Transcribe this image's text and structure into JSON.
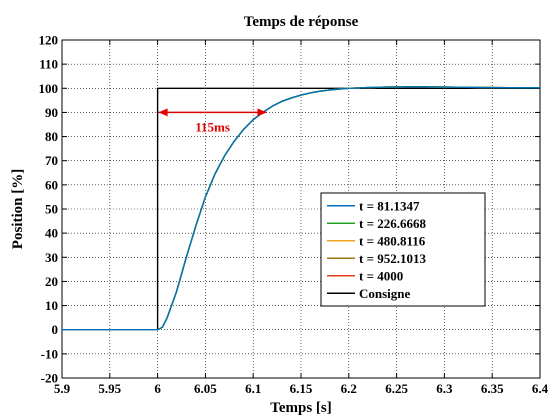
{
  "chart_data": {
    "type": "line",
    "title": "Temps de réponse",
    "xlabel": "Temps [s]",
    "ylabel": "Position [%]",
    "xlim": [
      5.9,
      6.4
    ],
    "ylim": [
      -20,
      120
    ],
    "xticks": [
      5.9,
      5.95,
      6,
      6.05,
      6.1,
      6.15,
      6.2,
      6.25,
      6.3,
      6.35,
      6.4
    ],
    "xtick_labels": [
      "5.9",
      "5.95",
      "6",
      "6.05",
      "6.1",
      "6.15",
      "6.2",
      "6.25",
      "6.3",
      "6.35",
      "6.4"
    ],
    "yticks": [
      -20,
      -10,
      0,
      10,
      20,
      30,
      40,
      50,
      60,
      70,
      80,
      90,
      100,
      110,
      120
    ],
    "ytick_labels": [
      "-20",
      "-10",
      "0",
      "10",
      "20",
      "30",
      "40",
      "50",
      "60",
      "70",
      "80",
      "90",
      "100",
      "110",
      "120"
    ],
    "grid": true,
    "legend_position": "lower-right",
    "series": [
      {
        "name": "t = 81.1347",
        "color": "#0072bd",
        "x": [
          5.9,
          6.0,
          6.005,
          6.01,
          6.02,
          6.03,
          6.04,
          6.05,
          6.06,
          6.07,
          6.08,
          6.09,
          6.1,
          6.11,
          6.12,
          6.13,
          6.14,
          6.15,
          6.16,
          6.17,
          6.18,
          6.19,
          6.2,
          6.22,
          6.24,
          6.26,
          6.28,
          6.3,
          6.35,
          6.4
        ],
        "y": [
          0,
          0,
          1,
          5,
          16,
          30,
          43,
          55,
          64.5,
          72,
          78,
          83,
          87,
          90,
          92.6,
          94.6,
          96,
          97.2,
          98.1,
          98.8,
          99.3,
          99.7,
          100,
          100.3,
          100.5,
          100.6,
          100.6,
          100.5,
          100.3,
          100.2
        ]
      },
      {
        "name": "t = 226.6668",
        "color": "#20a020",
        "x": [
          5.9,
          6.0,
          6.005,
          6.01,
          6.02,
          6.03,
          6.04,
          6.05,
          6.06,
          6.07,
          6.08,
          6.09,
          6.1,
          6.11,
          6.12,
          6.13,
          6.14,
          6.15,
          6.16,
          6.17,
          6.18,
          6.19,
          6.2,
          6.22,
          6.24,
          6.26,
          6.28,
          6.3,
          6.35,
          6.4
        ],
        "y": [
          0,
          0,
          1,
          5,
          16,
          30,
          43,
          55,
          64.5,
          72,
          78,
          83,
          87,
          90,
          92.6,
          94.6,
          96,
          97.2,
          98.1,
          98.8,
          99.3,
          99.7,
          100,
          100.3,
          100.5,
          100.6,
          100.6,
          100.5,
          100.3,
          100.2
        ]
      },
      {
        "name": "t = 480.8116",
        "color": "#f0a020",
        "x": [
          5.9,
          6.0,
          6.005,
          6.01,
          6.02,
          6.03,
          6.04,
          6.05,
          6.06,
          6.07,
          6.08,
          6.09,
          6.1,
          6.11,
          6.12,
          6.13,
          6.14,
          6.15,
          6.16,
          6.17,
          6.18,
          6.19,
          6.2,
          6.22,
          6.24,
          6.26,
          6.28,
          6.3,
          6.35,
          6.4
        ],
        "y": [
          0,
          0,
          1,
          5,
          16,
          30,
          43,
          55,
          64.5,
          72,
          78,
          83,
          87,
          90,
          92.6,
          94.6,
          96,
          97.2,
          98.1,
          98.8,
          99.3,
          99.7,
          100,
          100.3,
          100.5,
          100.6,
          100.6,
          100.5,
          100.3,
          100.2
        ]
      },
      {
        "name": "t = 952.1013",
        "color": "#a07a10",
        "x": [
          5.9,
          6.0,
          6.005,
          6.01,
          6.02,
          6.03,
          6.04,
          6.05,
          6.06,
          6.07,
          6.08,
          6.09,
          6.1,
          6.11,
          6.12,
          6.13,
          6.14,
          6.15,
          6.16,
          6.17,
          6.18,
          6.19,
          6.2,
          6.22,
          6.24,
          6.26,
          6.28,
          6.3,
          6.35,
          6.4
        ],
        "y": [
          0,
          0,
          1,
          5,
          16,
          30,
          43,
          55,
          64.5,
          72,
          78,
          83,
          87,
          90,
          92.6,
          94.6,
          96,
          97.2,
          98.1,
          98.8,
          99.3,
          99.7,
          100,
          100.3,
          100.5,
          100.6,
          100.6,
          100.5,
          100.3,
          100.2
        ]
      },
      {
        "name": "t = 4000",
        "color": "#e8401c",
        "x": [
          5.9,
          6.0,
          6.005,
          6.01,
          6.02,
          6.03,
          6.04,
          6.05,
          6.06,
          6.07,
          6.08,
          6.09,
          6.1,
          6.11,
          6.12,
          6.13,
          6.14,
          6.15,
          6.16,
          6.17,
          6.18,
          6.19,
          6.2,
          6.22,
          6.24,
          6.26,
          6.28,
          6.3,
          6.35,
          6.4
        ],
        "y": [
          0,
          0,
          1,
          5,
          16,
          30,
          43,
          55,
          64.5,
          72,
          78,
          83,
          87,
          90,
          92.6,
          94.6,
          96,
          97.2,
          98.1,
          98.8,
          99.3,
          99.7,
          100,
          100.3,
          100.5,
          100.6,
          100.6,
          100.5,
          100.3,
          100.2
        ]
      },
      {
        "name": "Consigne",
        "color": "#000000",
        "x": [
          5.9,
          6.0,
          6.0,
          6.4
        ],
        "y": [
          0,
          0,
          100,
          100
        ]
      }
    ],
    "annotations": [
      {
        "text": "115ms",
        "color": "#e00000",
        "x_start": 6.0,
        "x_end": 6.115,
        "y": 90
      }
    ]
  }
}
